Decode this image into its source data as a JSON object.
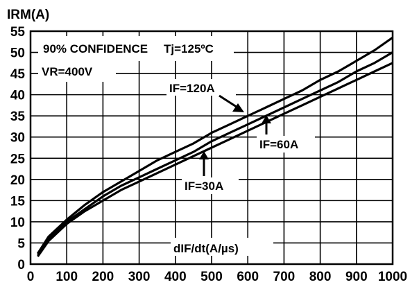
{
  "chart_data": {
    "type": "line",
    "ylabel": "IRM(A)",
    "xlabel": "dIF/dt(A/µs)",
    "xlim": [
      0,
      1000
    ],
    "ylim": [
      0,
      55
    ],
    "x_ticks": [
      "0",
      "100",
      "200",
      "300",
      "400",
      "500",
      "600",
      "700",
      "800",
      "900",
      "1000"
    ],
    "y_ticks": [
      "0",
      "5",
      "10",
      "15",
      "20",
      "25",
      "30",
      "35",
      "40",
      "45",
      "50",
      "55"
    ],
    "grid": true,
    "annotations": {
      "confidence": "90% CONFIDENCE",
      "tj": "Tj=125ºC",
      "vr": "VR=400V"
    },
    "series": [
      {
        "name": "IF=120A",
        "x": [
          20,
          50,
          100,
          150,
          200,
          250,
          300,
          350,
          400,
          450,
          500,
          550,
          600,
          650,
          700,
          750,
          800,
          850,
          900,
          950,
          1000
        ],
        "y": [
          2.5,
          6.5,
          10.5,
          14,
          17,
          19.5,
          22,
          24.5,
          26.5,
          28.5,
          31,
          33,
          35,
          37,
          39,
          41,
          43.5,
          45.5,
          48,
          50.5,
          53.5
        ]
      },
      {
        "name": "IF=60A",
        "x": [
          20,
          50,
          100,
          150,
          200,
          250,
          300,
          350,
          400,
          450,
          500,
          550,
          600,
          650,
          700,
          750,
          800,
          850,
          900,
          950,
          1000
        ],
        "y": [
          2.2,
          6,
          10,
          13,
          16,
          18.5,
          20.5,
          22.5,
          24.5,
          26.5,
          29,
          31,
          33,
          35,
          37,
          39,
          41,
          43,
          45.5,
          47.5,
          50
        ]
      },
      {
        "name": "IF=30A",
        "x": [
          20,
          50,
          100,
          150,
          200,
          250,
          300,
          350,
          400,
          450,
          500,
          550,
          600,
          650,
          700,
          750,
          800,
          850,
          900,
          950,
          1000
        ],
        "y": [
          1.8,
          5.5,
          9.5,
          12.5,
          15,
          17.5,
          19.5,
          21.5,
          23.5,
          25.5,
          27.5,
          29.5,
          31.5,
          33.5,
          35.5,
          37.5,
          39.5,
          41.5,
          43.5,
          45.5,
          47.5
        ]
      }
    ]
  }
}
